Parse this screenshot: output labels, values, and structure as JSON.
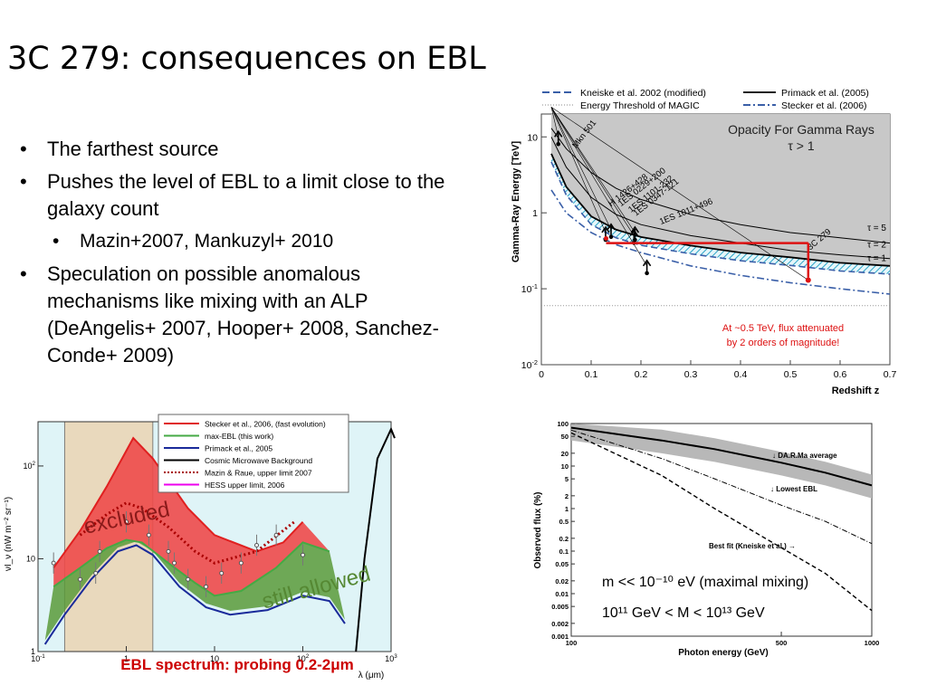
{
  "title": "3C 279: consequences on EBL",
  "bullets": [
    {
      "text": "The farthest source",
      "level": 1
    },
    {
      "text": "Pushes the level of EBL to a limit close to the galaxy count",
      "level": 1
    },
    {
      "text": "Mazin+2007, Mankuzyl+ 2010",
      "level": 2
    },
    {
      "text": "Speculation on possible anomalous mechanisms like mixing with an ALP (DeAngelis+ 2007, Hooper+ 2008, Sanchez-Conde+ 2009)",
      "level": 1
    }
  ],
  "charts": {
    "opacity": {
      "chart_data": {
        "type": "line",
        "ylabel": "Gamma-Ray Energy [TeV]",
        "xlabel": "Redshift z",
        "xlim": [
          0,
          0.7
        ],
        "ylim": [
          0.01,
          20
        ],
        "yscale": "log",
        "x_ticks": [
          "0",
          "0.1",
          "0.2",
          "0.3",
          "0.4",
          "0.5",
          "0.6",
          "0.7"
        ],
        "y_ticks": [
          "10^-2",
          "10^-1",
          "1",
          "10"
        ],
        "inner_title": "Opacity For Gamma Rays",
        "inner_subtitle": "τ > 1",
        "legend": [
          {
            "label": "Kneiske et al. 2002 (modified)",
            "style": "dashed",
            "color": "#3a5fa8"
          },
          {
            "label": "Primack et al. (2005)",
            "style": "solid",
            "color": "#000000"
          },
          {
            "label": "Energy Threshold of MAGIC",
            "style": "dotted",
            "color": "#888888"
          },
          {
            "label": "Stecker et al. (2006)",
            "style": "dashdot",
            "color": "#3a5fa8"
          }
        ],
        "series": [
          {
            "name": "τ = 5",
            "x": [
              0.02,
              0.05,
              0.1,
              0.15,
              0.2,
              0.3,
              0.4,
              0.5,
              0.6,
              0.7
            ],
            "y": [
              13,
              7,
              3.4,
              2.1,
              1.5,
              0.95,
              0.7,
              0.55,
              0.47,
              0.4
            ]
          },
          {
            "name": "τ = 2",
            "x": [
              0.02,
              0.05,
              0.1,
              0.15,
              0.2,
              0.3,
              0.4,
              0.5,
              0.6,
              0.7
            ],
            "y": [
              10,
              4,
              1.6,
              0.95,
              0.7,
              0.5,
              0.4,
              0.32,
              0.28,
              0.25
            ]
          },
          {
            "name": "τ = 1",
            "x": [
              0.02,
              0.05,
              0.1,
              0.15,
              0.2,
              0.3,
              0.4,
              0.5,
              0.6,
              0.7
            ],
            "y": [
              6,
              2.2,
              0.9,
              0.6,
              0.48,
              0.37,
              0.3,
              0.26,
              0.22,
              0.2
            ]
          },
          {
            "name": "Stecker et al. (2006)",
            "x": [
              0.02,
              0.05,
              0.1,
              0.15,
              0.2,
              0.3,
              0.4,
              0.5,
              0.6,
              0.7
            ],
            "y": [
              2,
              1,
              0.55,
              0.38,
              0.3,
              0.2,
              0.15,
              0.12,
              0.1,
              0.085
            ]
          },
          {
            "name": "Energy Threshold of MAGIC",
            "x": [
              0,
              0.7
            ],
            "y": [
              0.06,
              0.06
            ]
          }
        ],
        "sources": [
          {
            "name": "Mkn 501",
            "z": 0.034,
            "E": 10
          },
          {
            "name": "H 1426+428",
            "z": 0.129,
            "E": 0.55
          },
          {
            "name": "1ES 0229+200",
            "z": 0.14,
            "E": 0.6
          },
          {
            "name": "1ES 1101-232",
            "z": 0.186,
            "E": 0.5
          },
          {
            "name": "1ES 0347-121",
            "z": 0.188,
            "E": 0.55
          },
          {
            "name": "1ES 1011+496",
            "z": 0.212,
            "E": 0.2
          },
          {
            "name": "3C 279",
            "z": 0.536,
            "E": 0.13
          }
        ],
        "annotation": "At ~0.5 TeV, flux attenuated by 2 orders of magnitude!",
        "tau_labels": [
          "τ = 5",
          "τ = 2",
          "τ = 1"
        ],
        "highlight_color": "#dd1111"
      }
    },
    "ebl": {
      "chart_data": {
        "type": "line",
        "ylabel": "νI_ν (nW m⁻² sr⁻¹)",
        "xlabel": "λ (μm)",
        "xscale": "log",
        "yscale": "log",
        "xlim": [
          0.1,
          1000
        ],
        "ylim": [
          1,
          300
        ],
        "x_ticks": [
          "10^-1",
          "1",
          "10",
          "10^2",
          "10^3"
        ],
        "y_ticks": [
          "1",
          "10",
          "10^2"
        ],
        "legend": [
          {
            "label": "Stecker et al., 2006, (fast evolution)",
            "color": "#e02020",
            "style": "solid"
          },
          {
            "label": "max-EBL (this work)",
            "color": "#44aa44",
            "style": "solid"
          },
          {
            "label": "Primack et al., 2005",
            "color": "#1a2a9a",
            "style": "solid"
          },
          {
            "label": "Cosmic Microwave Background",
            "color": "#000000",
            "style": "solid"
          },
          {
            "label": "Mazin & Raue, upper limit 2007",
            "color": "#aa0000",
            "style": "dotted"
          },
          {
            "label": "HESS upper limit, 2006",
            "color": "#ee00ee",
            "style": "solid"
          }
        ],
        "series": [
          {
            "name": "Stecker et al., 2006, (fast evolution)",
            "x": [
              0.15,
              0.3,
              0.6,
              1.2,
              2,
              5,
              10,
              30,
              60,
              100
            ],
            "y": [
              8,
              20,
              60,
              200,
              120,
              35,
              18,
              12,
              15,
              25
            ]
          },
          {
            "name": "max-EBL (this work)",
            "x": [
              0.15,
              0.3,
              0.6,
              1,
              1.5,
              3,
              6,
              10,
              20,
              50,
              100,
              200
            ],
            "y": [
              5,
              8,
              13,
              16,
              15,
              9,
              5.5,
              4,
              4.5,
              8,
              15,
              12
            ]
          },
          {
            "name": "Primack et al., 2005",
            "x": [
              0.12,
              0.2,
              0.4,
              0.8,
              1.3,
              2,
              4,
              8,
              15,
              40,
              100,
              200,
              300
            ],
            "y": [
              1.2,
              2.5,
              6,
              12,
              14,
              11,
              5,
              3,
              2.5,
              2.8,
              4,
              3.5,
              2
            ]
          },
          {
            "name": "Cosmic Microwave Background",
            "x": [
              400,
              500,
              700,
              1000,
              1100
            ],
            "y": [
              1,
              10,
              120,
              250,
              200
            ]
          },
          {
            "name": "Mazin & Raue, upper limit 2007",
            "x": [
              0.3,
              0.6,
              1,
              1.5,
              3,
              6,
              10,
              30,
              80
            ],
            "y": [
              18,
              30,
              40,
              35,
              22,
              12,
              9,
              12,
              25
            ]
          }
        ],
        "annotation_excluded": "excluded",
        "annotation_allowed": "still allowed",
        "caption": "EBL spectrum: probing 0.2-2μm",
        "band_range": [
          0.2,
          2
        ]
      }
    },
    "flux": {
      "chart_data": {
        "type": "line",
        "ylabel": "Observed flux (%)",
        "xlabel": "Photon energy (GeV)",
        "xscale": "log",
        "yscale": "log",
        "xlim": [
          100,
          1000
        ],
        "ylim": [
          0.001,
          100
        ],
        "x_ticks": [
          "100",
          "500",
          "1000"
        ],
        "y_ticks": [
          "0.001",
          "0.002",
          "0.005",
          "0.01",
          "0.02",
          "0.05",
          "0.1",
          "0.2",
          "0.5",
          "1",
          "2",
          "5",
          "10",
          "20",
          "50",
          "100"
        ],
        "series": [
          {
            "name": "DA.R.Ma average",
            "x": [
              100,
              200,
              300,
              500,
              700,
              1000
            ],
            "y": [
              80,
              40,
              25,
              12,
              7,
              3.5
            ]
          },
          {
            "name": "Lowest EBL",
            "x": [
              100,
              200,
              300,
              500,
              700,
              1000
            ],
            "y": [
              70,
              15,
              5,
              1.2,
              0.5,
              0.15
            ]
          },
          {
            "name": "Best fit (Kneiske et al.)",
            "x": [
              100,
              200,
              300,
              500,
              700,
              1000
            ],
            "y": [
              60,
              6,
              1,
              0.12,
              0.03,
              0.004
            ]
          }
        ],
        "labels": [
          "↓ DA.R.Ma average",
          "↓ Lowest EBL",
          "Best fit (Kneiske et al.) →"
        ],
        "formula1": "m << 10⁻¹⁰ eV (maximal mixing)",
        "formula2": "10¹¹ GeV < M < 10¹³ GeV"
      }
    }
  }
}
